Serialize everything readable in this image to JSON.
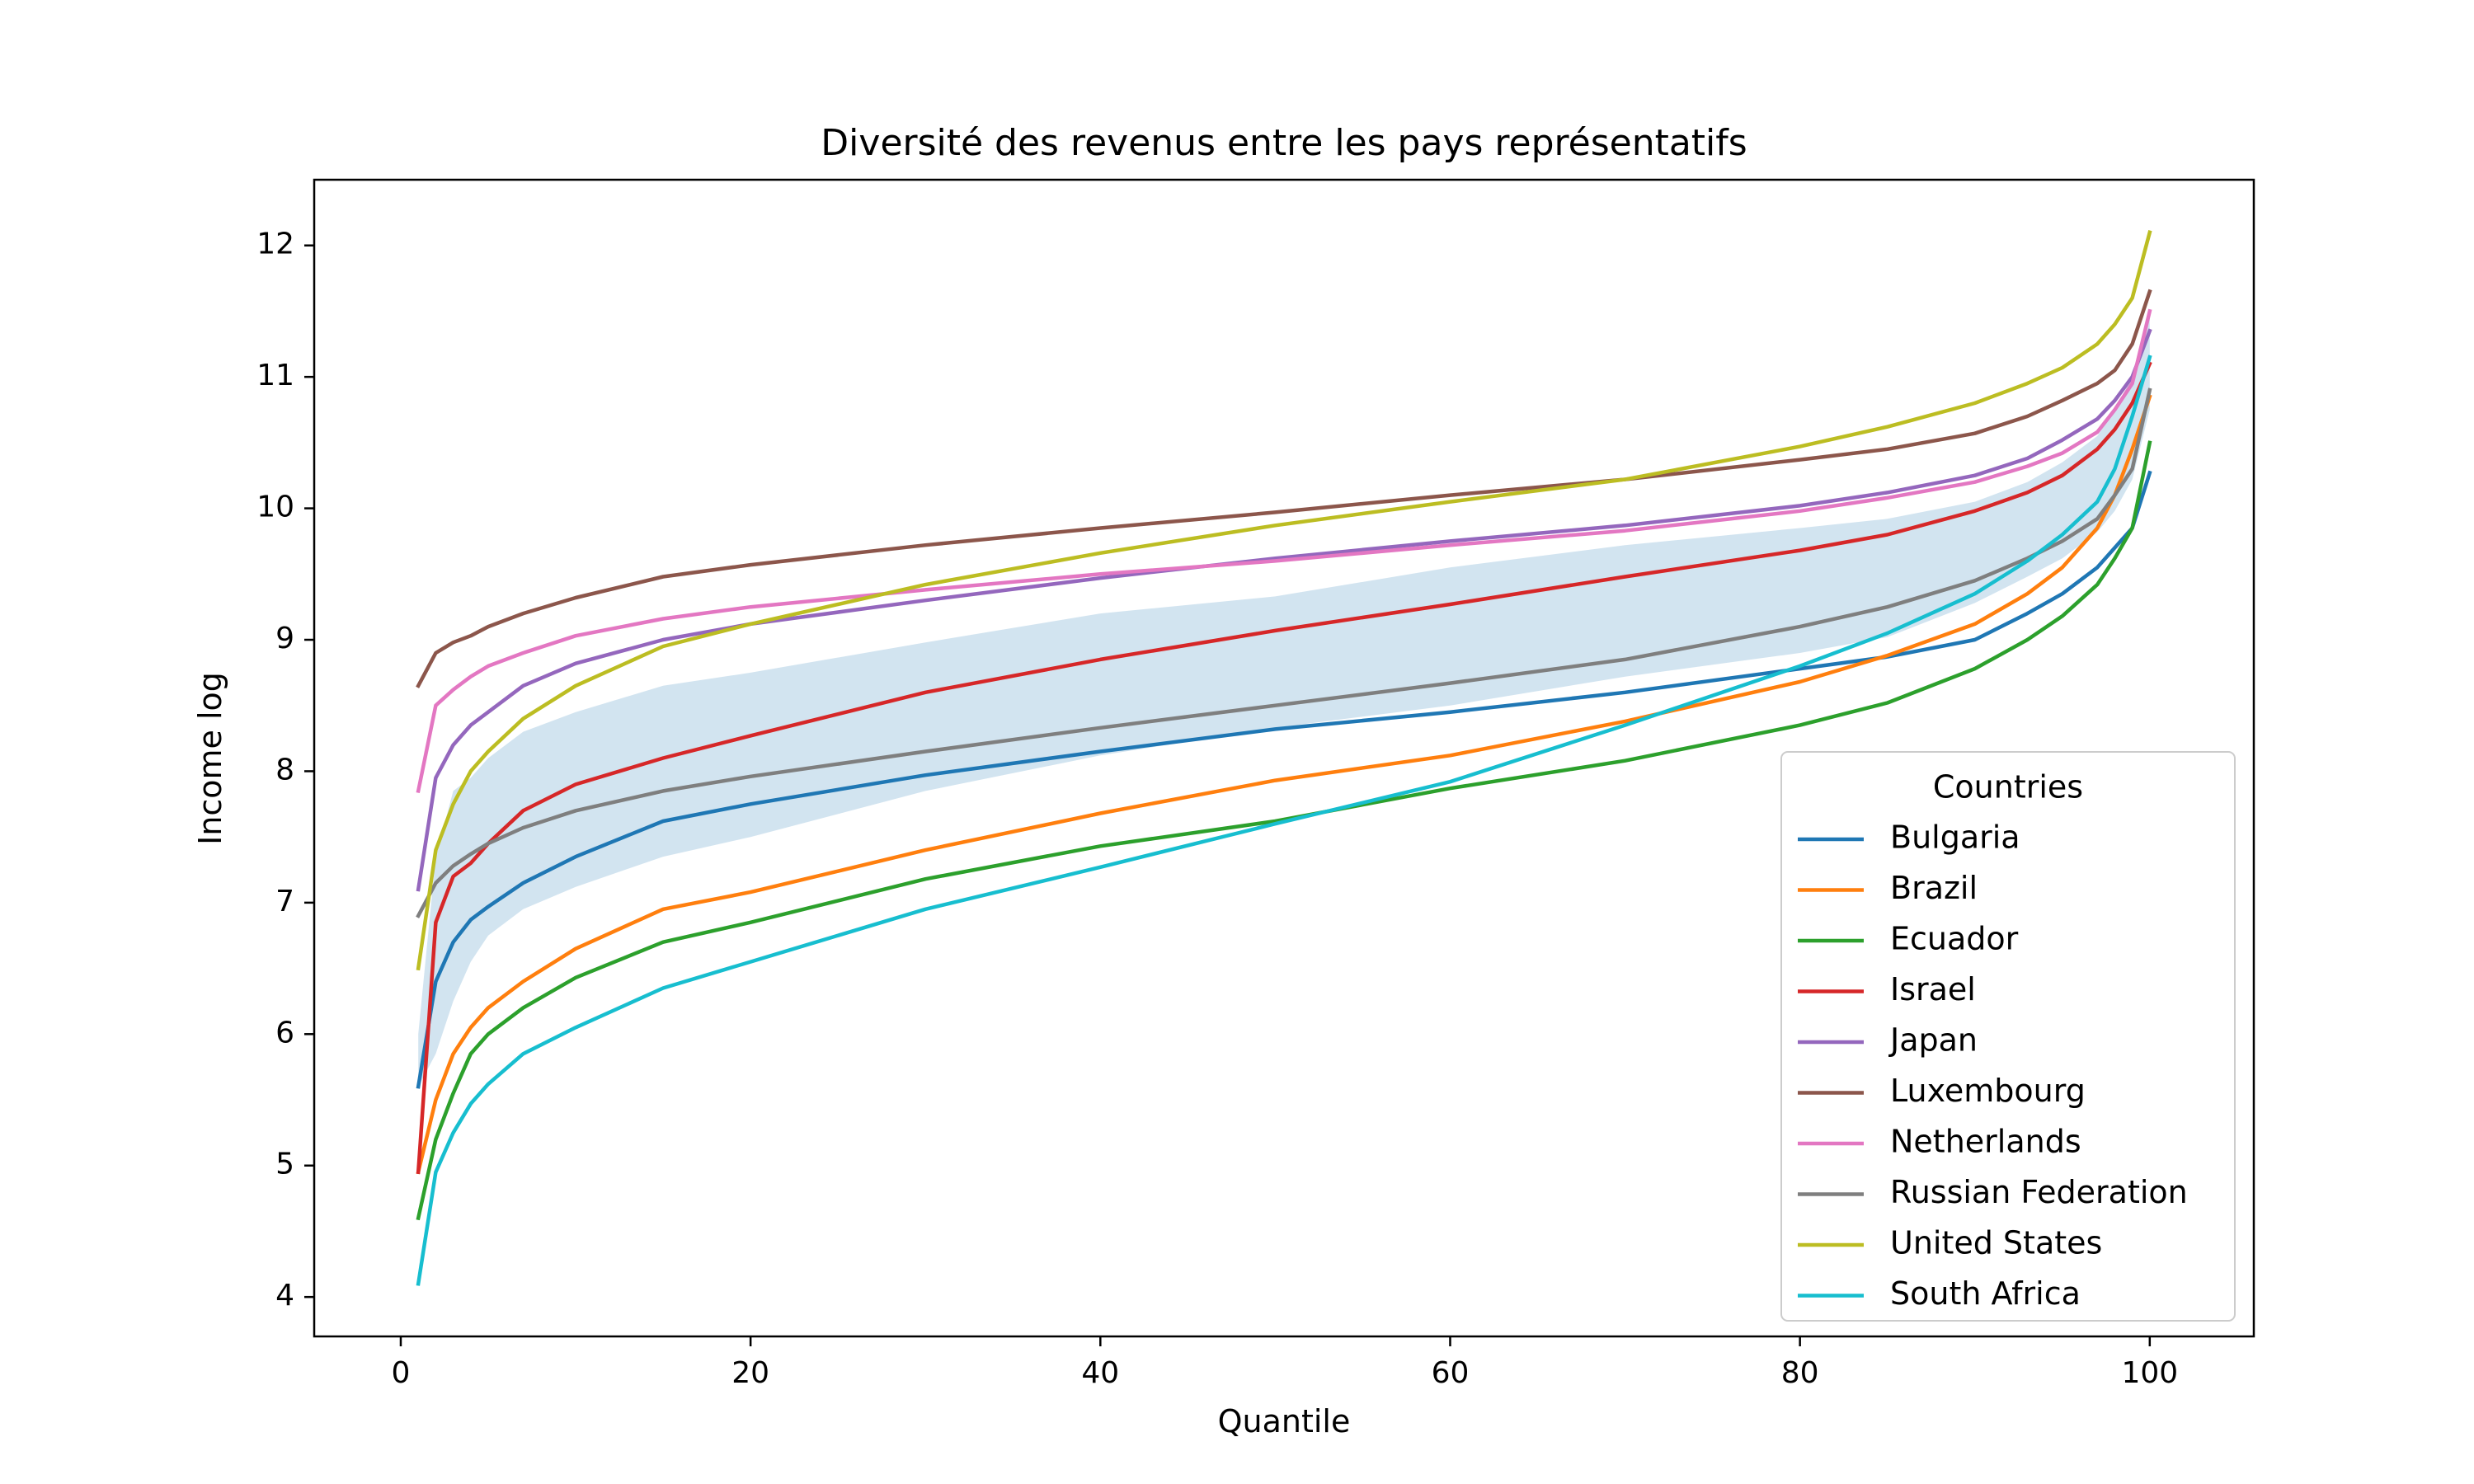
{
  "chart_data": {
    "type": "line",
    "title": "Diversité des revenus entre les pays représentatifs",
    "xlabel": "Quantile",
    "ylabel": "Income log",
    "xlim": [
      -4.95,
      105.95
    ],
    "ylim": [
      3.7,
      12.5
    ],
    "xticks": [
      0,
      20,
      40,
      60,
      80,
      100
    ],
    "yticks": [
      4,
      5,
      6,
      7,
      8,
      9,
      10,
      11,
      12
    ],
    "grid": false,
    "legend": {
      "title": "Countries",
      "placement": "lower right"
    },
    "x_points": [
      1,
      2,
      3,
      4,
      5,
      7,
      10,
      15,
      20,
      30,
      40,
      50,
      60,
      70,
      80,
      85,
      90,
      93,
      95,
      97,
      98,
      99,
      100
    ],
    "band": {
      "color": "#1f77b4",
      "opacity": 0.2,
      "upper": [
        6.0,
        7.35,
        7.85,
        7.95,
        8.1,
        8.3,
        8.45,
        8.65,
        8.75,
        8.98,
        9.2,
        9.33,
        9.55,
        9.72,
        9.85,
        9.92,
        10.05,
        10.2,
        10.35,
        10.55,
        10.75,
        11.0,
        11.45
      ],
      "lower": [
        5.6,
        5.85,
        6.25,
        6.55,
        6.75,
        6.95,
        7.12,
        7.35,
        7.5,
        7.85,
        8.12,
        8.33,
        8.5,
        8.72,
        8.9,
        9.02,
        9.28,
        9.48,
        9.62,
        9.82,
        9.98,
        10.22,
        10.75
      ]
    },
    "series": [
      {
        "name": "Bulgaria",
        "color": "#1f77b4",
        "values": [
          5.6,
          6.4,
          6.7,
          6.87,
          6.97,
          7.15,
          7.35,
          7.62,
          7.75,
          7.97,
          8.15,
          8.32,
          8.45,
          8.6,
          8.78,
          8.87,
          9.0,
          9.2,
          9.35,
          9.55,
          9.7,
          9.85,
          10.27
        ]
      },
      {
        "name": "Brazil",
        "color": "#ff7f0e",
        "values": [
          4.95,
          5.5,
          5.85,
          6.05,
          6.2,
          6.4,
          6.65,
          6.95,
          7.08,
          7.4,
          7.68,
          7.93,
          8.12,
          8.38,
          8.68,
          8.88,
          9.12,
          9.35,
          9.55,
          9.85,
          10.1,
          10.45,
          10.85
        ]
      },
      {
        "name": "Ecuador",
        "color": "#2ca02c",
        "values": [
          4.6,
          5.2,
          5.55,
          5.85,
          6.0,
          6.2,
          6.43,
          6.7,
          6.85,
          7.18,
          7.43,
          7.62,
          7.87,
          8.08,
          8.35,
          8.52,
          8.78,
          9.0,
          9.18,
          9.42,
          9.62,
          9.85,
          10.5
        ]
      },
      {
        "name": "Israel",
        "color": "#d62728",
        "values": [
          4.95,
          6.85,
          7.2,
          7.3,
          7.45,
          7.7,
          7.9,
          8.1,
          8.27,
          8.6,
          8.85,
          9.07,
          9.27,
          9.48,
          9.68,
          9.8,
          9.98,
          10.12,
          10.25,
          10.45,
          10.6,
          10.8,
          11.1
        ]
      },
      {
        "name": "Japan",
        "color": "#9467bd",
        "values": [
          7.1,
          7.95,
          8.2,
          8.35,
          8.45,
          8.65,
          8.82,
          9.0,
          9.12,
          9.3,
          9.47,
          9.62,
          9.75,
          9.87,
          10.02,
          10.12,
          10.25,
          10.38,
          10.52,
          10.68,
          10.82,
          11.0,
          11.35
        ]
      },
      {
        "name": "Luxembourg",
        "color": "#8c564b",
        "values": [
          8.65,
          8.9,
          8.98,
          9.03,
          9.1,
          9.2,
          9.32,
          9.48,
          9.57,
          9.72,
          9.85,
          9.97,
          10.1,
          10.22,
          10.37,
          10.45,
          10.57,
          10.7,
          10.82,
          10.95,
          11.05,
          11.25,
          11.65
        ]
      },
      {
        "name": "Netherlands",
        "color": "#e377c2",
        "values": [
          7.85,
          8.5,
          8.62,
          8.72,
          8.8,
          8.9,
          9.03,
          9.16,
          9.25,
          9.38,
          9.5,
          9.6,
          9.72,
          9.83,
          9.98,
          10.08,
          10.2,
          10.32,
          10.42,
          10.58,
          10.75,
          10.95,
          11.5
        ]
      },
      {
        "name": "Russian Federation",
        "color": "#7f7f7f",
        "values": [
          6.9,
          7.15,
          7.28,
          7.37,
          7.45,
          7.57,
          7.7,
          7.85,
          7.96,
          8.15,
          8.33,
          8.5,
          8.67,
          8.85,
          9.1,
          9.25,
          9.45,
          9.62,
          9.75,
          9.92,
          10.1,
          10.3,
          10.9
        ]
      },
      {
        "name": "United States",
        "color": "#bcbd22",
        "values": [
          6.5,
          7.4,
          7.75,
          8.0,
          8.15,
          8.4,
          8.65,
          8.95,
          9.12,
          9.42,
          9.66,
          9.87,
          10.05,
          10.22,
          10.47,
          10.62,
          10.8,
          10.95,
          11.07,
          11.25,
          11.4,
          11.6,
          12.1
        ]
      },
      {
        "name": "South Africa",
        "color": "#17becf",
        "values": [
          4.1,
          4.95,
          5.25,
          5.47,
          5.62,
          5.85,
          6.05,
          6.35,
          6.55,
          6.95,
          7.27,
          7.6,
          7.92,
          8.35,
          8.8,
          9.05,
          9.35,
          9.6,
          9.8,
          10.05,
          10.3,
          10.7,
          11.15
        ]
      }
    ]
  }
}
